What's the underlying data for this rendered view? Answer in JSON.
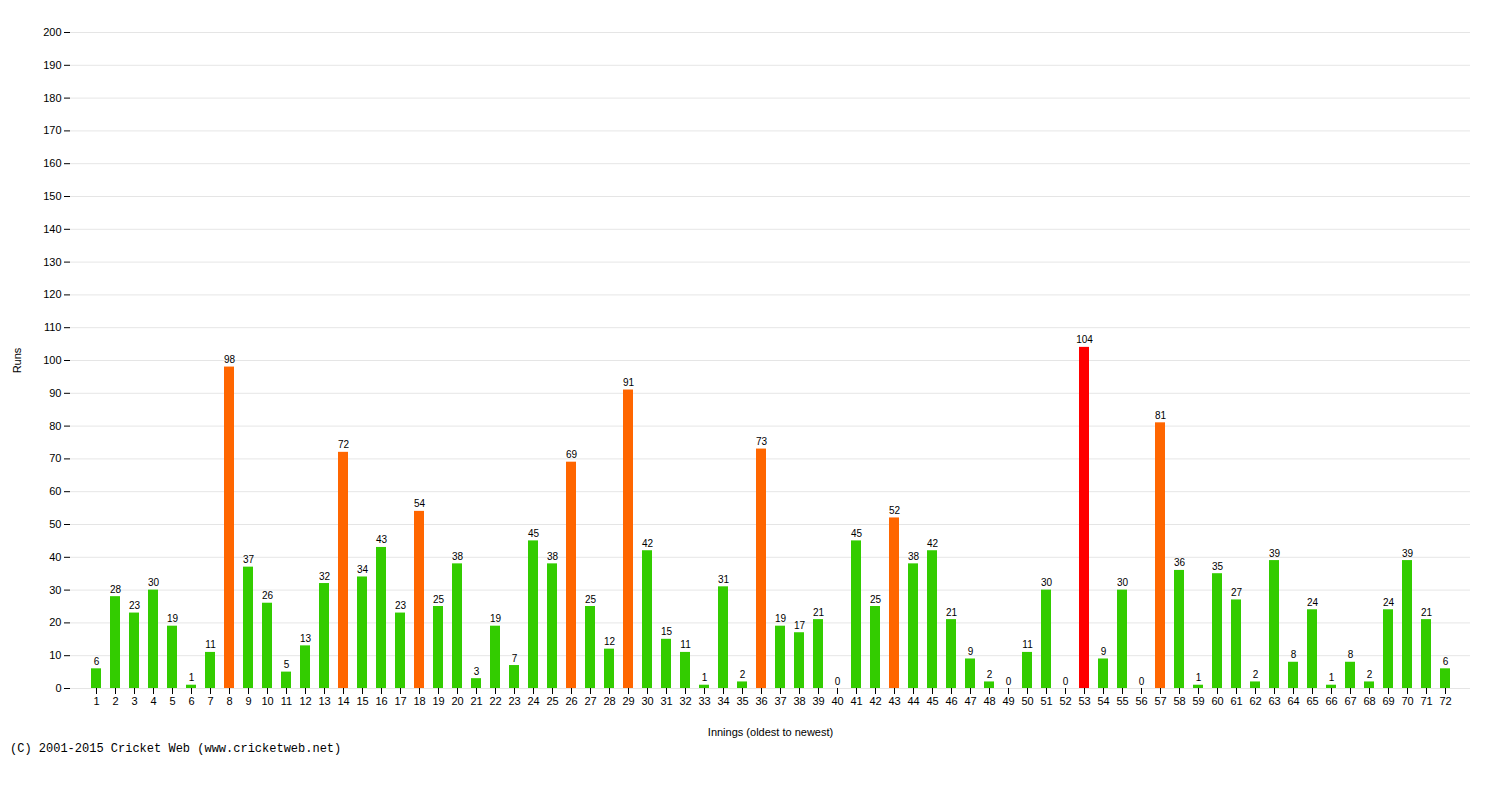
{
  "chart_data": {
    "type": "bar",
    "xlabel": "Innings (oldest to newest)",
    "ylabel": "Runs",
    "caption": "(C) 2001-2015 Cricket Web (www.cricketweb.net)",
    "categories": [
      "1",
      "2",
      "3",
      "4",
      "5",
      "6",
      "7",
      "8",
      "9",
      "10",
      "11",
      "12",
      "13",
      "14",
      "15",
      "16",
      "17",
      "18",
      "19",
      "20",
      "21",
      "22",
      "23",
      "24",
      "25",
      "26",
      "27",
      "28",
      "29",
      "30",
      "31",
      "32",
      "33",
      "34",
      "35",
      "36",
      "37",
      "38",
      "39",
      "40",
      "41",
      "42",
      "43",
      "44",
      "45",
      "46",
      "47",
      "48",
      "49",
      "50",
      "51",
      "52",
      "53",
      "54",
      "55",
      "56",
      "57",
      "58",
      "59",
      "60",
      "61",
      "62",
      "63",
      "64",
      "65",
      "66",
      "67",
      "68",
      "69",
      "70",
      "71",
      "72"
    ],
    "values": [
      6,
      28,
      23,
      30,
      19,
      1,
      11,
      98,
      37,
      26,
      5,
      13,
      32,
      72,
      34,
      43,
      23,
      54,
      25,
      38,
      3,
      19,
      7,
      45,
      38,
      69,
      25,
      12,
      91,
      42,
      15,
      11,
      1,
      31,
      2,
      73,
      19,
      17,
      21,
      0,
      45,
      25,
      52,
      38,
      42,
      21,
      9,
      2,
      0,
      11,
      30,
      0,
      104,
      9,
      30,
      0,
      81,
      36,
      1,
      35,
      27,
      2,
      39,
      8,
      24,
      1,
      8,
      2,
      24,
      39,
      21,
      6
    ],
    "colors": [
      "#33cc00",
      "#33cc00",
      "#33cc00",
      "#33cc00",
      "#33cc00",
      "#33cc00",
      "#33cc00",
      "#ff6600",
      "#33cc00",
      "#33cc00",
      "#33cc00",
      "#33cc00",
      "#33cc00",
      "#ff6600",
      "#33cc00",
      "#33cc00",
      "#33cc00",
      "#ff6600",
      "#33cc00",
      "#33cc00",
      "#33cc00",
      "#33cc00",
      "#33cc00",
      "#33cc00",
      "#33cc00",
      "#ff6600",
      "#33cc00",
      "#33cc00",
      "#ff6600",
      "#33cc00",
      "#33cc00",
      "#33cc00",
      "#33cc00",
      "#33cc00",
      "#33cc00",
      "#ff6600",
      "#33cc00",
      "#33cc00",
      "#33cc00",
      "#33cc00",
      "#33cc00",
      "#33cc00",
      "#ff6600",
      "#33cc00",
      "#33cc00",
      "#33cc00",
      "#33cc00",
      "#33cc00",
      "#33cc00",
      "#33cc00",
      "#33cc00",
      "#33cc00",
      "#ff0000",
      "#33cc00",
      "#33cc00",
      "#33cc00",
      "#ff6600",
      "#33cc00",
      "#33cc00",
      "#33cc00",
      "#33cc00",
      "#33cc00",
      "#33cc00",
      "#33cc00",
      "#33cc00",
      "#33cc00",
      "#33cc00",
      "#33cc00",
      "#33cc00",
      "#33cc00",
      "#33cc00",
      "#33cc00"
    ],
    "ylim": [
      0,
      200
    ],
    "yticks": [
      0,
      10,
      20,
      30,
      40,
      50,
      60,
      70,
      80,
      90,
      100,
      110,
      120,
      130,
      140,
      150,
      160,
      170,
      180,
      190,
      200
    ],
    "grid": true,
    "data_labels": true
  }
}
